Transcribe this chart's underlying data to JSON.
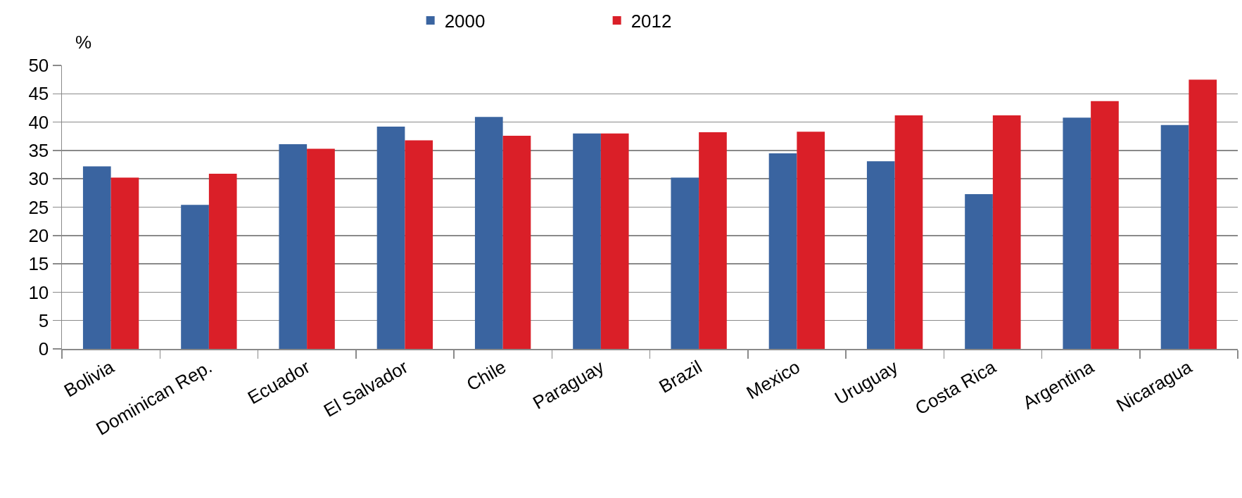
{
  "chart_data": {
    "type": "bar",
    "ylabel": "%",
    "categories": [
      "Bolivia",
      "Dominican Rep.",
      "Ecuador",
      "El Salvador",
      "Chile",
      "Paraguay",
      "Brazil",
      "Mexico",
      "Uruguay",
      "Costa Rica",
      "Argentina",
      "Nicaragua"
    ],
    "series": [
      {
        "name": "2000",
        "color": "#3a64a0",
        "values": [
          32.2,
          25.4,
          36.1,
          39.2,
          40.9,
          38.0,
          30.2,
          34.5,
          33.1,
          27.3,
          40.8,
          39.5
        ]
      },
      {
        "name": "2012",
        "color": "#da1f28",
        "values": [
          30.2,
          30.9,
          35.3,
          36.8,
          37.6,
          38.0,
          38.2,
          38.3,
          41.2,
          41.2,
          43.7,
          47.5
        ]
      }
    ],
    "ylim": [
      0,
      50
    ],
    "yticks": [
      0,
      5,
      10,
      15,
      20,
      25,
      30,
      35,
      40,
      45,
      50
    ],
    "grid": "y",
    "legend": "top"
  }
}
